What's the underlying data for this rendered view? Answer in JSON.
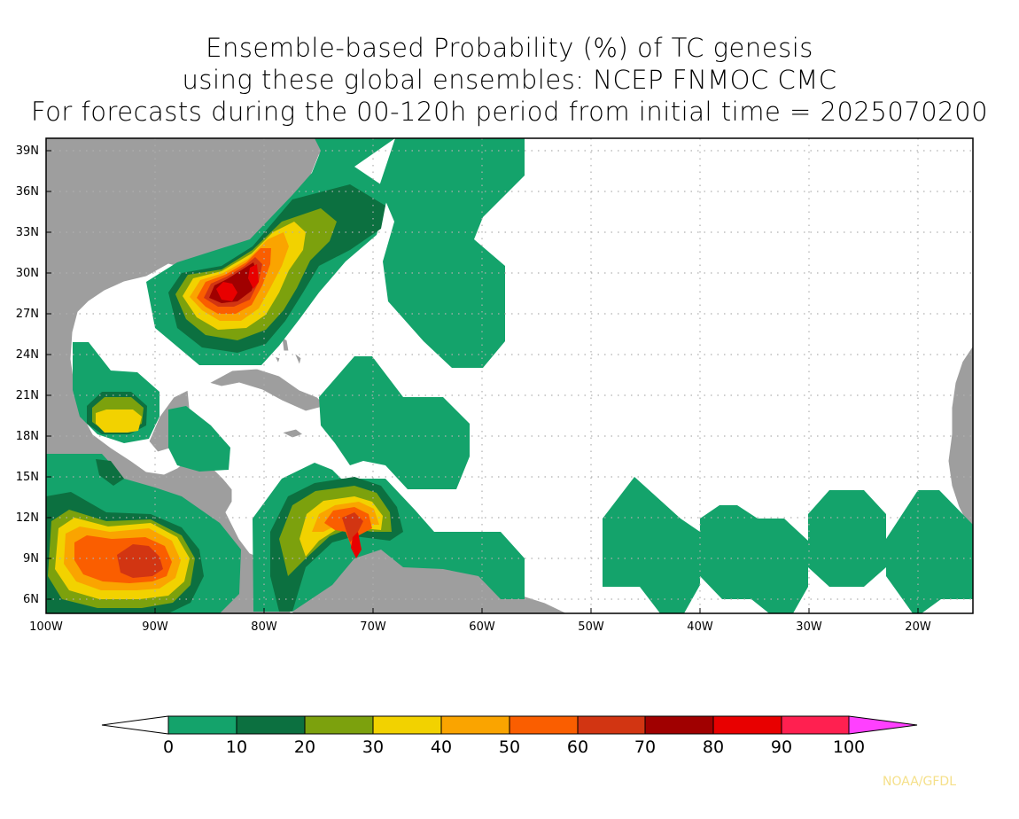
{
  "title": {
    "line1": "Ensemble-based Probability (%) of TC genesis",
    "line2": "using these global ensembles:   NCEP FNMOC CMC",
    "line3": "For forecasts during the 00-120h period from initial time = 2025070200"
  },
  "axes": {
    "lat_labels": [
      "39N",
      "36N",
      "33N",
      "30N",
      "27N",
      "24N",
      "21N",
      "18N",
      "15N",
      "12N",
      "9N",
      "6N"
    ],
    "lon_labels": [
      "100W",
      "90W",
      "80W",
      "70W",
      "60W",
      "50W",
      "40W",
      "30W",
      "20W"
    ]
  },
  "colorbar": {
    "labels": [
      "0",
      "10",
      "20",
      "30",
      "40",
      "50",
      "60",
      "70",
      "80",
      "90",
      "100"
    ],
    "colors": [
      "#ffffff",
      "#14a36b",
      "#0c7040",
      "#7ca10d",
      "#f2d200",
      "#faa400",
      "#fa5e00",
      "#d23512",
      "#a00000",
      "#e80000",
      "#ff2050",
      "#ff40ff"
    ]
  },
  "credit": "NOAA/GFDL",
  "colors": {
    "land": "#9e9e9e",
    "border": "#ffffff",
    "grid": "#b0b0b0"
  }
}
